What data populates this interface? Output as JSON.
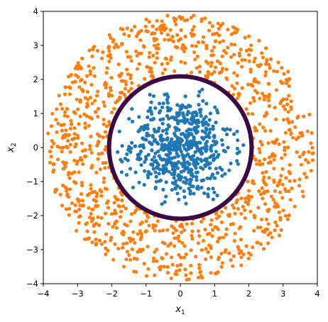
{
  "chart_data": {
    "type": "scatter",
    "title": "",
    "xlabel_base": "x",
    "xlabel_sub": "1",
    "ylabel_base": "x",
    "ylabel_sub": "2",
    "xlim": [
      -4,
      4
    ],
    "ylim": [
      -4,
      4
    ],
    "xticks": [
      -4,
      -3,
      -2,
      -1,
      0,
      1,
      2,
      3,
      4
    ],
    "yticks": [
      -4,
      -3,
      -2,
      -1,
      0,
      1,
      2,
      3,
      4
    ],
    "xtick_labels": [
      "−4",
      "−3",
      "−2",
      "−1",
      "0",
      "1",
      "2",
      "3",
      "4"
    ],
    "ytick_labels": [
      "−4",
      "−3",
      "−2",
      "−1",
      "0",
      "1",
      "2",
      "3",
      "4"
    ],
    "grid": false,
    "legend": "none",
    "series": [
      {
        "distribution": "gaussian-cluster",
        "color": "#1f77b4",
        "center": [
          0,
          0
        ],
        "count": 600,
        "std": 0.75,
        "max_radius": 1.9
      },
      {
        "distribution": "ring",
        "color": "#ff7f0e",
        "center": [
          0,
          0
        ],
        "count": 1100,
        "inner_radius": 2.1,
        "outer_radius": 3.9
      }
    ],
    "decision_boundary": {
      "shape": "circle",
      "center": [
        0,
        0
      ],
      "radius": 2.08,
      "color": "#3b0a45"
    }
  }
}
